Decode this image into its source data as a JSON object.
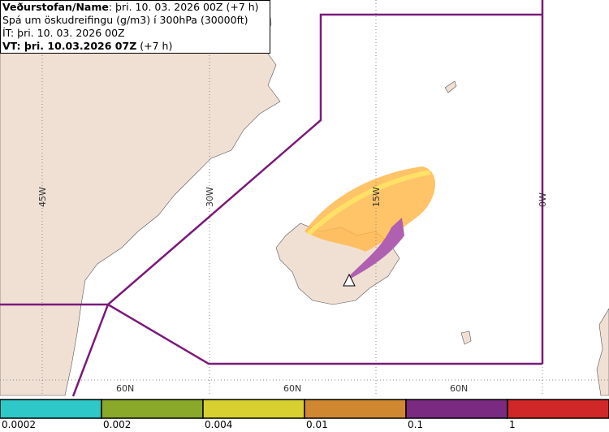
{
  "header": {
    "lines": [
      {
        "bold": "Veðurstofan/Name",
        "rest": ": þri. 10. 03. 2026 00Z (+7 h)"
      },
      {
        "rest": "Spá um öskudreifingu (g/m3) í 300hPa (30000ft)"
      },
      {
        "rest": "ÍT: þri. 10. 03. 2026 00Z"
      },
      {
        "bold": "VT: þri. 10.03.2026 07Z",
        "rest": " (+7 h)"
      }
    ]
  },
  "grid": {
    "lon": [
      "45W",
      "30W",
      "15W",
      "0W"
    ],
    "lat": [
      "60N",
      "60N",
      "60N"
    ]
  },
  "legend": {
    "colors": [
      "#2ec8c8",
      "#8aa82a",
      "#d8d030",
      "#d08830",
      "#7a2a80",
      "#d02828"
    ],
    "labels": [
      "0.0002",
      "0.002",
      "0.004",
      "0.01",
      "0.1",
      "1"
    ]
  }
}
